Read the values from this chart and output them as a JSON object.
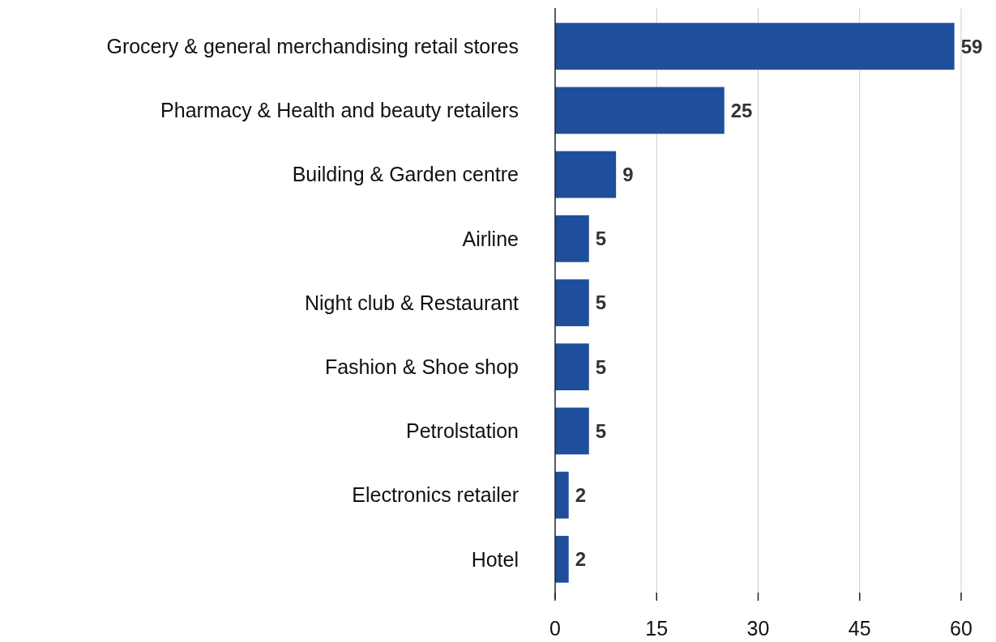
{
  "chart_data": {
    "type": "bar",
    "orientation": "horizontal",
    "categories": [
      "Grocery & general merchandising retail stores",
      "Pharmacy & Health and beauty retailers",
      "Building & Garden centre",
      "Airline",
      "Night club & Restaurant",
      "Fashion & Shoe shop",
      "Petrolstation",
      "Electronics retailer",
      "Hotel"
    ],
    "values": [
      59,
      25,
      9,
      5,
      5,
      5,
      5,
      2,
      2
    ],
    "color": "#1f4e9c",
    "xlim": [
      0,
      60
    ],
    "xticks": [
      0,
      15,
      30,
      45,
      60
    ],
    "grid": "x",
    "data_labels": true
  }
}
